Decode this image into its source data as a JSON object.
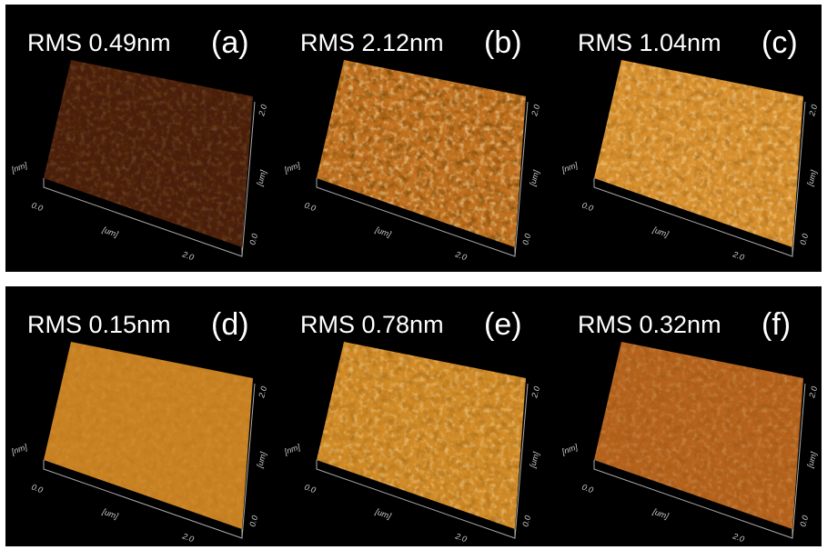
{
  "panels": [
    {
      "rms": "RMS 0.49nm",
      "label": "(a)",
      "axis_labels": [
        "[nm]",
        "0.0",
        "[um]",
        "2.0",
        "0.0",
        "[um]",
        "2.0"
      ]
    },
    {
      "rms": "RMS 2.12nm",
      "label": "(b)",
      "axis_labels": [
        "[nm]",
        "0.0",
        "[um]",
        "2.0",
        "0.0",
        "[um]",
        "2.0"
      ]
    },
    {
      "rms": "RMS 1.04nm",
      "label": "(c)",
      "axis_labels": [
        "[nm]",
        "0.0",
        "[um]",
        "2.0",
        "0.0",
        "[um]",
        "2.0"
      ]
    },
    {
      "rms": "RMS 0.15nm",
      "label": "(d)",
      "axis_labels": [
        "[nm]",
        "0.0",
        "[um]",
        "2.0",
        "0.0",
        "[um]",
        "2.0"
      ]
    },
    {
      "rms": "RMS 0.78nm",
      "label": "(e)",
      "axis_labels": [
        "[nm]",
        "0.0",
        "[um]",
        "2.0",
        "0.0",
        "[um]",
        "2.0"
      ]
    },
    {
      "rms": "RMS 0.32nm",
      "label": "(f)",
      "axis_labels": [
        "[nm]",
        "0.0",
        "[um]",
        "2.0",
        "0.0",
        "[um]",
        "2.0"
      ]
    }
  ]
}
